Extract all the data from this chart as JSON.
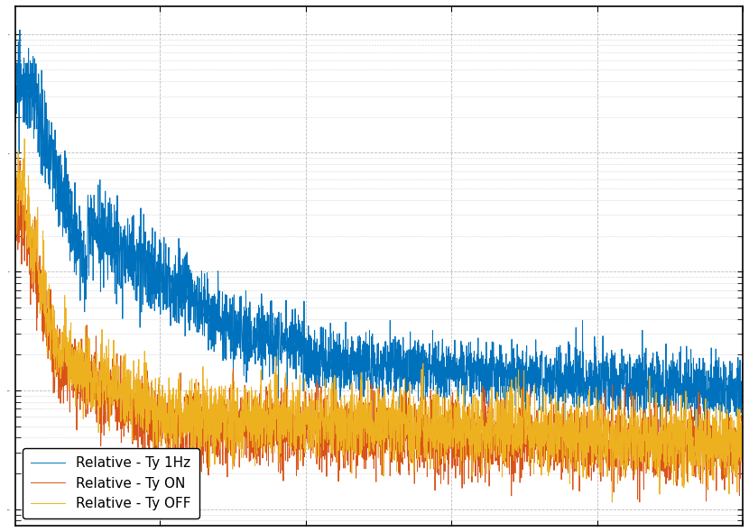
{
  "line1_label": "Relative - Ty 1Hz",
  "line2_label": "Relative - Ty ON",
  "line3_label": "Relative - Ty OFF",
  "line1_color": "#0072BD",
  "line2_color": "#D95319",
  "line3_color": "#EDB120",
  "background_color": "#ffffff",
  "grid_color": "#aaaaaa",
  "legend_loc": "lower left",
  "figsize": [
    8.3,
    5.9
  ],
  "dpi": 100
}
